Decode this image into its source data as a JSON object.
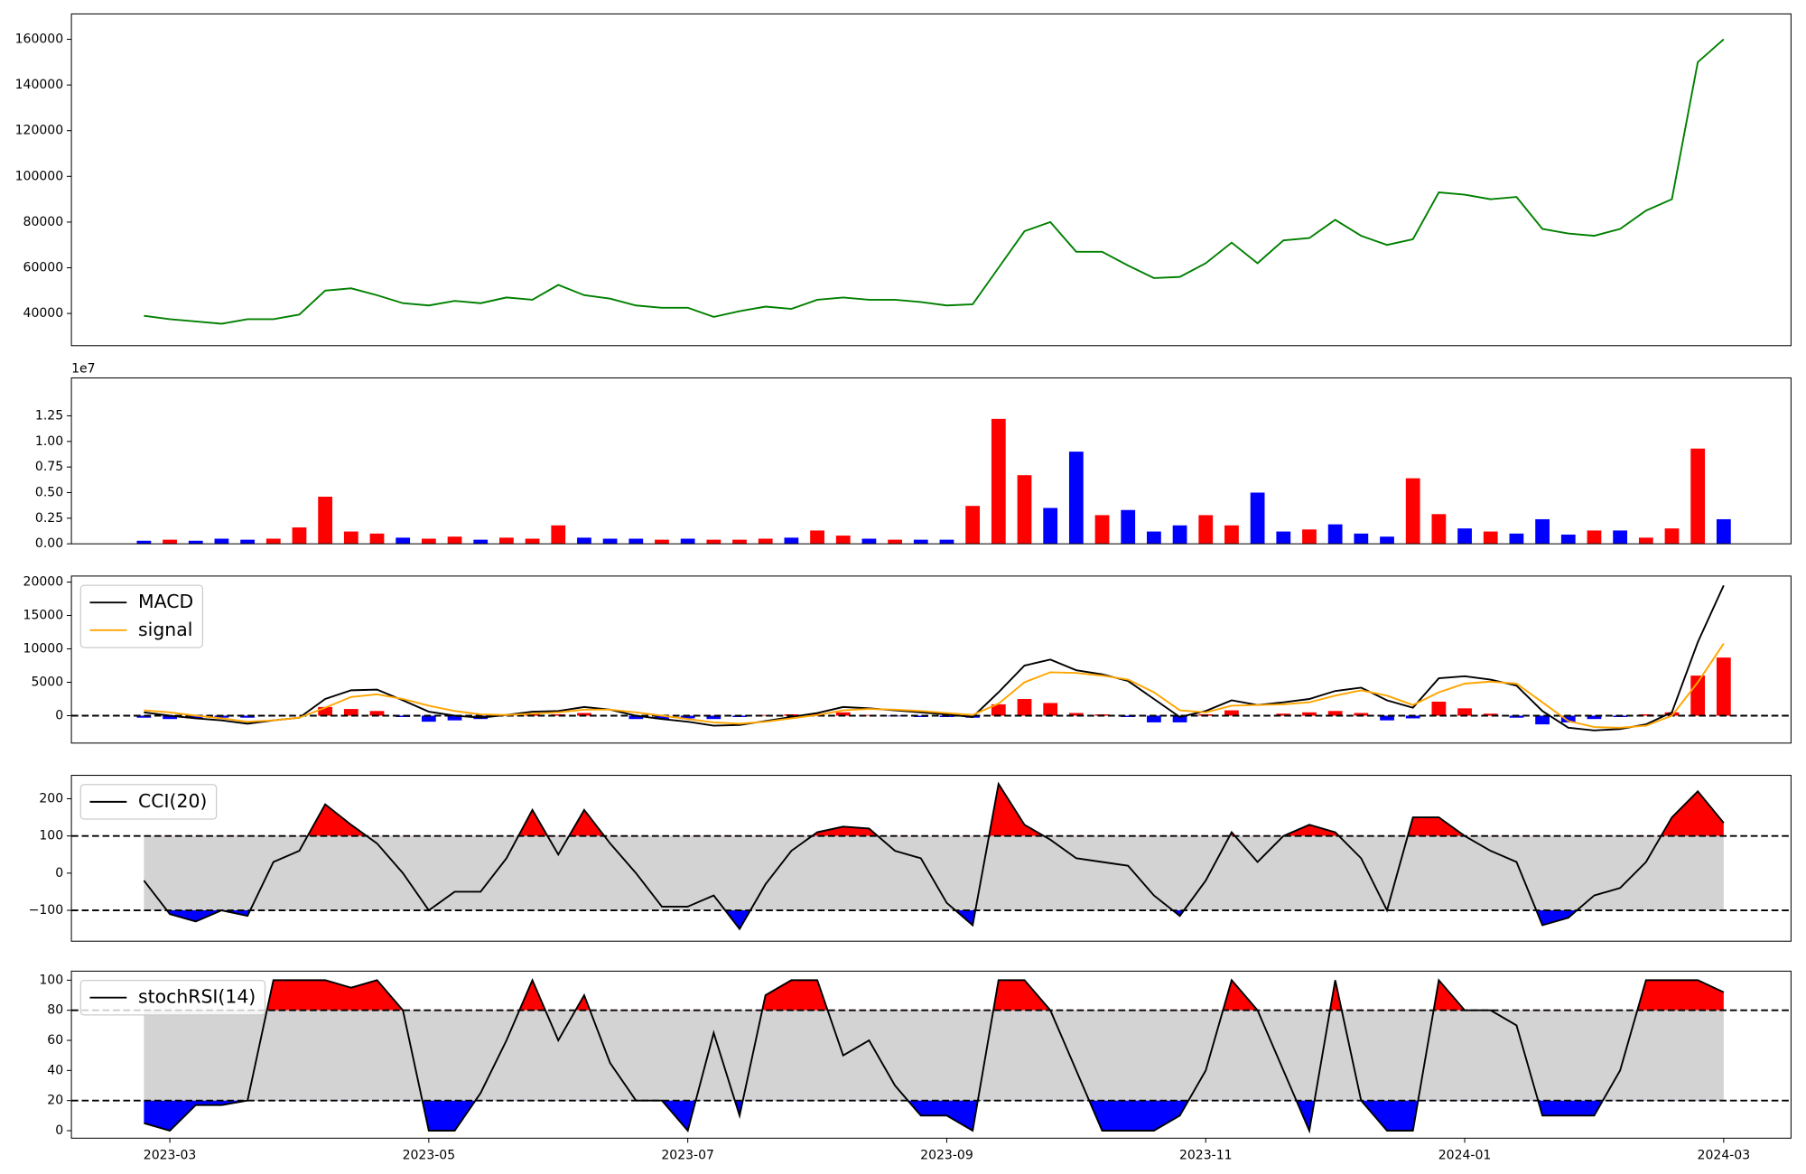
{
  "chart_data": [
    {
      "type": "line",
      "x": [
        2.8,
        3,
        3.2,
        3.4,
        3.6,
        3.8,
        4,
        4.2,
        4.4,
        4.6,
        4.8,
        5,
        5.2,
        5.4,
        5.6,
        5.8,
        6,
        6.2,
        6.4,
        6.6,
        6.8,
        7,
        7.2,
        7.4,
        7.6,
        7.8,
        8,
        8.2,
        8.4,
        8.6,
        8.8,
        9,
        9.2,
        9.4,
        9.6,
        9.8,
        10,
        10.2,
        10.4,
        10.6,
        10.8,
        11,
        11.2,
        11.4,
        11.6,
        11.8,
        12,
        12.2,
        12.4,
        12.6,
        12.8,
        13,
        13.2,
        13.4,
        13.6,
        13.8,
        14,
        14.2,
        14.4,
        14.6,
        14.8,
        15
      ],
      "xlim": [
        2.24,
        15.52
      ],
      "ylim": [
        25900,
        171100
      ],
      "yticks": [
        40000,
        60000,
        80000,
        100000,
        120000,
        140000,
        160000
      ],
      "series": [
        {
          "color": "#008000",
          "values": [
            39000,
            37500,
            36500,
            35500,
            37500,
            37500,
            39500,
            50000,
            51000,
            48000,
            44500,
            43500,
            45500,
            44500,
            47000,
            46000,
            52500,
            48000,
            46500,
            43500,
            42500,
            42500,
            38500,
            41000,
            43000,
            42000,
            46000,
            47000,
            46000,
            46000,
            45000,
            43500,
            44000,
            60000,
            76000,
            80000,
            67000,
            67000,
            61000,
            55500,
            56000,
            62000,
            71000,
            62000,
            72000,
            73000,
            81000,
            74000,
            70000,
            72500,
            93000,
            92000,
            90000,
            91000,
            77000,
            75000,
            74000,
            77000,
            85000,
            90000,
            150000,
            160000
          ]
        }
      ]
    },
    {
      "type": "bar",
      "x": [
        2.8,
        3,
        3.2,
        3.4,
        3.6,
        3.8,
        4,
        4.2,
        4.4,
        4.6,
        4.8,
        5,
        5.2,
        5.4,
        5.6,
        5.8,
        6,
        6.2,
        6.4,
        6.6,
        6.8,
        7,
        7.2,
        7.4,
        7.6,
        7.8,
        8,
        8.2,
        8.4,
        8.6,
        8.8,
        9,
        9.2,
        9.4,
        9.6,
        9.8,
        10,
        10.2,
        10.4,
        10.6,
        10.8,
        11,
        11.2,
        11.4,
        11.6,
        11.8,
        12,
        12.2,
        12.4,
        12.6,
        12.8,
        13,
        13.2,
        13.4,
        13.6,
        13.8,
        14,
        14.2,
        14.4,
        14.6,
        14.8,
        15
      ],
      "xlim": [
        2.24,
        15.52
      ],
      "ylim": [
        0,
        1.62
      ],
      "yticks": [
        {
          "value": 0,
          "label": "0.00"
        },
        {
          "value": 0.25,
          "label": "0.25"
        },
        {
          "value": 0.5,
          "label": "0.50"
        },
        {
          "value": 0.75,
          "label": "0.75"
        },
        {
          "value": 1,
          "label": "1.00"
        },
        {
          "value": 1.25,
          "label": "1.25"
        }
      ],
      "offset_text": "1e7",
      "values": [
        0.03,
        0.04,
        0.03,
        0.05,
        0.04,
        0.05,
        0.16,
        0.46,
        0.12,
        0.1,
        0.06,
        0.05,
        0.07,
        0.04,
        0.06,
        0.05,
        0.18,
        0.06,
        0.05,
        0.05,
        0.04,
        0.05,
        0.04,
        0.04,
        0.05,
        0.06,
        0.13,
        0.08,
        0.05,
        0.04,
        0.04,
        0.04,
        0.37,
        1.22,
        0.67,
        0.35,
        0.9,
        0.28,
        0.33,
        0.12,
        0.18,
        0.28,
        0.18,
        0.5,
        0.12,
        0.14,
        0.19,
        0.1,
        0.07,
        0.64,
        0.29,
        0.15,
        0.12,
        0.1,
        0.24,
        0.09,
        0.13,
        0.13,
        0.06,
        0.15,
        0.93,
        0.24
      ],
      "colors": [
        "blue",
        "red",
        "blue",
        "blue",
        "blue",
        "red",
        "red",
        "red",
        "red",
        "red",
        "blue",
        "red",
        "red",
        "blue",
        "red",
        "red",
        "red",
        "blue",
        "blue",
        "blue",
        "red",
        "blue",
        "red",
        "red",
        "red",
        "blue",
        "red",
        "red",
        "blue",
        "red",
        "blue",
        "blue",
        "red",
        "red",
        "red",
        "blue",
        "blue",
        "red",
        "blue",
        "blue",
        "blue",
        "red",
        "red",
        "blue",
        "blue",
        "red",
        "blue",
        "blue",
        "blue",
        "red",
        "red",
        "blue",
        "red",
        "blue",
        "blue",
        "blue",
        "red",
        "blue",
        "red",
        "red",
        "red",
        "blue"
      ]
    },
    {
      "type": "line",
      "x": [
        2.8,
        3,
        3.2,
        3.4,
        3.6,
        3.8,
        4,
        4.2,
        4.4,
        4.6,
        4.8,
        5,
        5.2,
        5.4,
        5.6,
        5.8,
        6,
        6.2,
        6.4,
        6.6,
        6.8,
        7,
        7.2,
        7.4,
        7.6,
        7.8,
        8,
        8.2,
        8.4,
        8.6,
        8.8,
        9,
        9.2,
        9.4,
        9.6,
        9.8,
        10,
        10.2,
        10.4,
        10.6,
        10.8,
        11,
        11.2,
        11.4,
        11.6,
        11.8,
        12,
        12.2,
        12.4,
        12.6,
        12.8,
        13,
        13.2,
        13.4,
        13.6,
        13.8,
        14,
        14.2,
        14.4,
        14.6,
        14.8,
        15
      ],
      "xlim": [
        2.24,
        15.52
      ],
      "ylim": [
        -4100,
        20900
      ],
      "yticks": [
        0,
        5000,
        10000,
        15000,
        20000
      ],
      "hlines": [
        0
      ],
      "legend": "upper left",
      "series": [
        {
          "name": "MACD",
          "color": "#000000",
          "values": [
            500,
            0,
            -400,
            -700,
            -1200,
            -700,
            -300,
            2500,
            3800,
            3900,
            2300,
            600,
            0,
            -300,
            100,
            600,
            700,
            1300,
            900,
            0,
            -500,
            -900,
            -1500,
            -1400,
            -800,
            -200,
            400,
            1300,
            1100,
            800,
            500,
            200,
            -200,
            3500,
            7500,
            8400,
            6800,
            6200,
            5200,
            2500,
            -200,
            700,
            2300,
            1600,
            2000,
            2500,
            3700,
            4200,
            2300,
            1200,
            5600,
            5900,
            5400,
            4500,
            700,
            -1800,
            -2200,
            -2000,
            -1300,
            500,
            11000,
            19500
          ]
        },
        {
          "name": "signal",
          "color": "#ffa500",
          "values": [
            800,
            500,
            0,
            -400,
            -900,
            -700,
            -300,
            1200,
            2800,
            3200,
            2500,
            1500,
            700,
            200,
            100,
            300,
            500,
            900,
            900,
            500,
            0,
            -500,
            -1000,
            -1200,
            -900,
            -400,
            100,
            800,
            1000,
            900,
            700,
            400,
            100,
            1800,
            5000,
            6500,
            6400,
            6000,
            5400,
            3500,
            800,
            500,
            1500,
            1600,
            1700,
            2000,
            3000,
            3800,
            3000,
            1600,
            3500,
            4800,
            5100,
            4800,
            2000,
            -800,
            -1700,
            -1800,
            -1500,
            0,
            5000,
            10800
          ]
        }
      ],
      "histogram": {
        "positive_color": "#ff0000",
        "negative_color": "#0000ff",
        "values": [
          -300,
          -500,
          -400,
          -300,
          -300,
          0,
          0,
          1300,
          1000,
          700,
          -200,
          -900,
          -700,
          -500,
          0,
          300,
          200,
          400,
          0,
          -500,
          -500,
          -400,
          -500,
          -200,
          100,
          200,
          300,
          500,
          100,
          -100,
          -200,
          -200,
          -300,
          1700,
          2500,
          1900,
          400,
          200,
          -200,
          -1000,
          -1000,
          200,
          800,
          0,
          300,
          500,
          700,
          400,
          -700,
          -400,
          2100,
          1100,
          300,
          -300,
          -1300,
          -1000,
          -500,
          -200,
          200,
          500,
          6000,
          8700
        ]
      }
    },
    {
      "type": "line",
      "x": [
        2.8,
        3,
        3.2,
        3.4,
        3.6,
        3.8,
        4,
        4.2,
        4.4,
        4.6,
        4.8,
        5,
        5.2,
        5.4,
        5.6,
        5.8,
        6,
        6.2,
        6.4,
        6.6,
        6.8,
        7,
        7.2,
        7.4,
        7.6,
        7.8,
        8,
        8.2,
        8.4,
        8.6,
        8.8,
        9,
        9.2,
        9.4,
        9.6,
        9.8,
        10,
        10.2,
        10.4,
        10.6,
        10.8,
        11,
        11.2,
        11.4,
        11.6,
        11.8,
        12,
        12.2,
        12.4,
        12.6,
        12.8,
        13,
        13.2,
        13.4,
        13.6,
        13.8,
        14,
        14.2,
        14.4,
        14.6,
        14.8,
        15
      ],
      "xlim": [
        2.24,
        15.52
      ],
      "ylim": [
        -183,
        263
      ],
      "yticks": [
        {
          "value": -100,
          "label": "−100"
        },
        0,
        100,
        200
      ],
      "levels": [
        100,
        -100
      ],
      "above_color": "#ff0000",
      "below_color": "#0000ff",
      "band_color": "#d3d3d3",
      "legend": "upper left",
      "series": [
        {
          "name": "CCI(20)",
          "color": "#000000",
          "values": [
            -20,
            -110,
            -130,
            -100,
            -115,
            30,
            60,
            185,
            130,
            80,
            0,
            -100,
            -50,
            -50,
            40,
            170,
            50,
            170,
            80,
            0,
            -90,
            -90,
            -60,
            -150,
            -30,
            60,
            110,
            125,
            120,
            60,
            40,
            -80,
            -140,
            240,
            130,
            90,
            40,
            30,
            20,
            -60,
            -115,
            -20,
            110,
            30,
            100,
            130,
            110,
            40,
            -100,
            150,
            150,
            100,
            60,
            30,
            -140,
            -120,
            -60,
            -40,
            30,
            150,
            220,
            135
          ]
        }
      ]
    },
    {
      "type": "line",
      "x": [
        2.8,
        3,
        3.2,
        3.4,
        3.6,
        3.8,
        4,
        4.2,
        4.4,
        4.6,
        4.8,
        5,
        5.2,
        5.4,
        5.6,
        5.8,
        6,
        6.2,
        6.4,
        6.6,
        6.8,
        7,
        7.2,
        7.4,
        7.6,
        7.8,
        8,
        8.2,
        8.4,
        8.6,
        8.8,
        9,
        9.2,
        9.4,
        9.6,
        9.8,
        10,
        10.2,
        10.4,
        10.6,
        10.8,
        11,
        11.2,
        11.4,
        11.6,
        11.8,
        12,
        12.2,
        12.4,
        12.6,
        12.8,
        13,
        13.2,
        13.4,
        13.6,
        13.8,
        14,
        14.2,
        14.4,
        14.6,
        14.8,
        15
      ],
      "xlim": [
        2.24,
        15.52
      ],
      "xticks": [
        {
          "value": 3,
          "label": "2023-03"
        },
        {
          "value": 5,
          "label": "2023-05"
        },
        {
          "value": 7,
          "label": "2023-07"
        },
        {
          "value": 9,
          "label": "2023-09"
        },
        {
          "value": 11,
          "label": "2023-11"
        },
        {
          "value": 13,
          "label": "2024-01"
        },
        {
          "value": 15,
          "label": "2024-03"
        }
      ],
      "ylim": [
        -5,
        106
      ],
      "yticks": [
        0,
        20,
        40,
        60,
        80,
        100
      ],
      "levels": [
        80,
        20
      ],
      "above_color": "#ff0000",
      "below_color": "#0000ff",
      "band_color": "#d3d3d3",
      "legend": "upper left",
      "series": [
        {
          "name": "stochRSI(14)",
          "color": "#000000",
          "values": [
            5,
            0,
            17,
            17,
            20,
            100,
            100,
            100,
            95,
            100,
            80,
            0,
            0,
            25,
            60,
            100,
            60,
            90,
            45,
            20,
            20,
            0,
            65,
            10,
            90,
            100,
            100,
            50,
            60,
            30,
            10,
            10,
            0,
            100,
            100,
            80,
            40,
            0,
            0,
            0,
            10,
            40,
            100,
            80,
            40,
            0,
            100,
            20,
            0,
            0,
            100,
            80,
            80,
            70,
            10,
            10,
            10,
            40,
            100,
            100,
            100,
            92
          ]
        }
      ]
    }
  ]
}
